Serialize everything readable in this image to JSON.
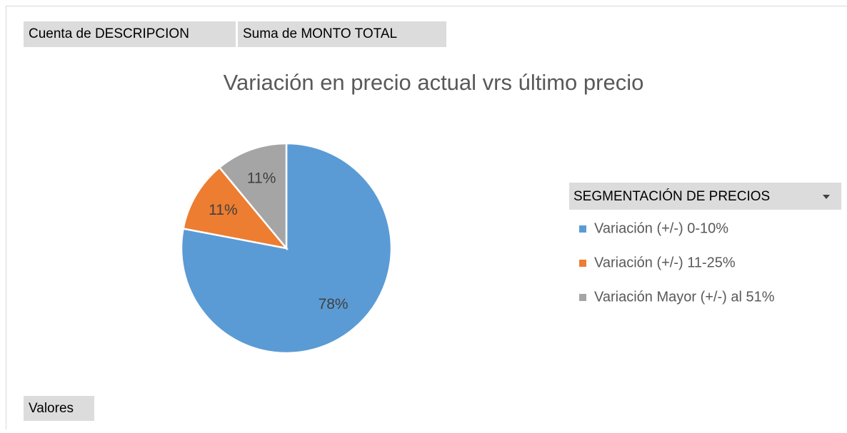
{
  "chart_data": {
    "type": "pie",
    "title": "Variación en precio actual vrs último precio",
    "field_buttons": [
      "Cuenta de DESCRIPCION",
      "Suma de MONTO TOTAL"
    ],
    "axis_button": "Valores",
    "legend_title": "SEGMENTACIÓN DE PRECIOS",
    "categories": [
      "Variación (+/-) 0-10%",
      "Variación (+/-) 11-25%",
      "Variación Mayor (+/-) al 51%"
    ],
    "values": [
      78,
      11,
      11
    ],
    "value_labels": [
      "78%",
      "11%",
      "11%"
    ],
    "colors": [
      "#5b9bd5",
      "#ed7d31",
      "#a5a5a5"
    ],
    "legend": "right"
  }
}
